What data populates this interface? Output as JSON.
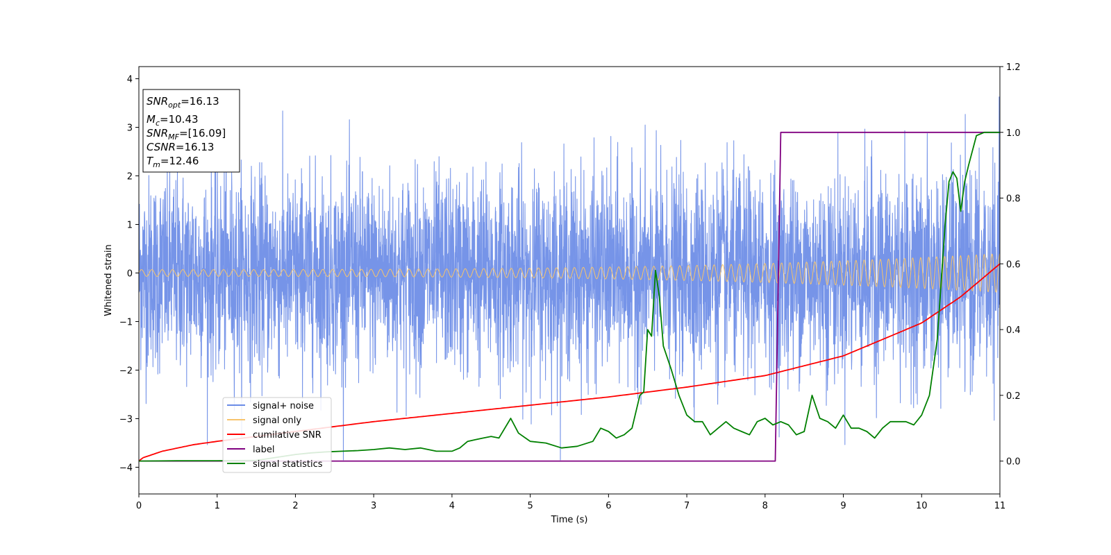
{
  "chart_data": {
    "type": "line",
    "xlabel": "Time (s)",
    "ylabel": "Whitened strain",
    "xlim": [
      0,
      11
    ],
    "ylim": [
      -4.55,
      4.25
    ],
    "y2lim": [
      -0.1,
      1.2
    ],
    "x_ticks": [
      0,
      1,
      2,
      3,
      4,
      5,
      6,
      7,
      8,
      9,
      10,
      11
    ],
    "y_ticks": [
      4,
      3,
      2,
      1,
      0,
      -1,
      -2,
      -3,
      -4
    ],
    "y_tick_labels": [
      "4",
      "3",
      "2",
      "1",
      "0",
      "−1",
      "−2",
      "−3",
      "−4"
    ],
    "y2_ticks": [
      1.2,
      1.0,
      0.8,
      0.6,
      0.4,
      0.2,
      0.0
    ],
    "y2_tick_labels": [
      "1.2",
      "1.0",
      "0.8",
      "0.6",
      "0.4",
      "0.2",
      "0.0"
    ],
    "grid": false,
    "legend_position": "lower-left",
    "series": [
      {
        "name": "signal+ noise",
        "axis": "left",
        "color": "#6a8be6",
        "style": "noise",
        "rms": 1.0,
        "max_abs": 3.85,
        "note": "Gaussian noise plus the signal, sampled densely over 0–11 s"
      },
      {
        "name": "signal only",
        "axis": "left",
        "color": "#f7c46c",
        "style": "chirp",
        "amplitude_start": 0.07,
        "amplitude_end": 0.4,
        "frequency_start_hz": 7.5,
        "frequency_end_hz": 10
      },
      {
        "name": "cumilative SNR",
        "axis": "right",
        "color": "#ff0000",
        "x": [
          0,
          0.05,
          0.3,
          0.7,
          1,
          2,
          3,
          4,
          5,
          6,
          7,
          8,
          9,
          10,
          10.5,
          11
        ],
        "values": [
          0.0,
          0.01,
          0.03,
          0.05,
          0.06,
          0.09,
          0.12,
          0.145,
          0.17,
          0.195,
          0.225,
          0.26,
          0.32,
          0.42,
          0.5,
          0.6
        ]
      },
      {
        "name": "label",
        "axis": "right",
        "color": "#800080",
        "x": [
          0,
          8.13,
          8.2,
          11
        ],
        "values": [
          0.0,
          0.0,
          1.0,
          1.0
        ]
      },
      {
        "name": "signal statistics",
        "axis": "right",
        "color": "#008000",
        "x": [
          0,
          0.5,
          1,
          1.5,
          2,
          2.2,
          2.4,
          2.6,
          2.8,
          3.0,
          3.2,
          3.4,
          3.6,
          3.8,
          4.0,
          4.1,
          4.2,
          4.3,
          4.4,
          4.5,
          4.6,
          4.75,
          4.85,
          5.0,
          5.2,
          5.4,
          5.6,
          5.8,
          5.9,
          6.0,
          6.1,
          6.2,
          6.3,
          6.4,
          6.45,
          6.5,
          6.55,
          6.6,
          6.65,
          6.7,
          6.8,
          6.9,
          7.0,
          7.1,
          7.2,
          7.3,
          7.4,
          7.5,
          7.6,
          7.7,
          7.8,
          7.9,
          8.0,
          8.1,
          8.2,
          8.3,
          8.4,
          8.5,
          8.6,
          8.7,
          8.8,
          8.9,
          9.0,
          9.1,
          9.2,
          9.3,
          9.4,
          9.5,
          9.6,
          9.7,
          9.8,
          9.9,
          10.0,
          10.1,
          10.2,
          10.3,
          10.35,
          10.4,
          10.45,
          10.5,
          10.55,
          10.6,
          10.7,
          10.8,
          10.9,
          11.0
        ],
        "values": [
          0.0,
          0.001,
          0.001,
          0.002,
          0.02,
          0.025,
          0.028,
          0.03,
          0.032,
          0.035,
          0.04,
          0.035,
          0.04,
          0.03,
          0.03,
          0.04,
          0.06,
          0.065,
          0.07,
          0.075,
          0.07,
          0.13,
          0.085,
          0.06,
          0.055,
          0.04,
          0.045,
          0.06,
          0.1,
          0.09,
          0.07,
          0.08,
          0.1,
          0.2,
          0.21,
          0.4,
          0.38,
          0.58,
          0.5,
          0.35,
          0.28,
          0.2,
          0.14,
          0.12,
          0.12,
          0.08,
          0.1,
          0.12,
          0.1,
          0.09,
          0.08,
          0.12,
          0.13,
          0.11,
          0.12,
          0.11,
          0.08,
          0.09,
          0.2,
          0.13,
          0.12,
          0.1,
          0.14,
          0.1,
          0.1,
          0.09,
          0.07,
          0.1,
          0.12,
          0.12,
          0.12,
          0.11,
          0.14,
          0.2,
          0.37,
          0.72,
          0.85,
          0.88,
          0.86,
          0.76,
          0.85,
          0.9,
          0.99,
          1.0,
          1.0,
          1.0
        ]
      }
    ]
  },
  "info_box": {
    "snr_opt_label": "SNR",
    "snr_opt_sub": "opt",
    "snr_opt_value": "=16.13",
    "mc_label": "M",
    "mc_sub": "c",
    "mc_value": "=10.43",
    "snr_mf_label": "SNR",
    "snr_mf_sub": "MF",
    "snr_mf_value": "=[16.09]",
    "csnr_label": "CSNR",
    "csnr_value": "=16.13",
    "tm_label": "T",
    "tm_sub": "m",
    "tm_value": "=12.46"
  }
}
